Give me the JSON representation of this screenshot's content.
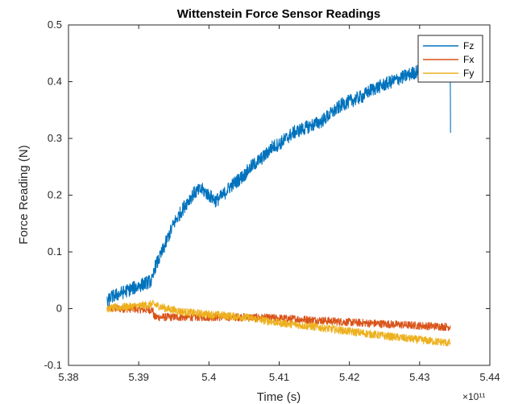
{
  "chart_data": {
    "type": "line",
    "title": "Wittenstein Force Sensor Readings",
    "xlabel": "Time (s)",
    "ylabel": "Force Reading (N)",
    "x_multiplier": "×10¹¹",
    "xlim": [
      5.38,
      5.44
    ],
    "ylim": [
      -0.1,
      0.5
    ],
    "x_ticks": [
      5.38,
      5.39,
      5.4,
      5.41,
      5.42,
      5.43,
      5.44
    ],
    "x_tick_labels": [
      "5.38",
      "5.39",
      "5.4",
      "5.41",
      "5.42",
      "5.43",
      "5.44"
    ],
    "y_ticks": [
      -0.1,
      0,
      0.1,
      0.2,
      0.3,
      0.4,
      0.5
    ],
    "y_tick_labels": [
      "-0.1",
      "0",
      "0.1",
      "0.2",
      "0.3",
      "0.4",
      "0.5"
    ],
    "grid": false,
    "legend_position": "top-right",
    "series": [
      {
        "name": "Fz",
        "color": "#0072BD",
        "noise": 0.012,
        "x": [
          5.3855,
          5.386,
          5.387,
          5.388,
          5.389,
          5.39,
          5.391,
          5.392,
          5.3922,
          5.393,
          5.394,
          5.395,
          5.396,
          5.397,
          5.398,
          5.399,
          5.4,
          5.401,
          5.402,
          5.403,
          5.404,
          5.405,
          5.406,
          5.407,
          5.408,
          5.409,
          5.41,
          5.411,
          5.412,
          5.413,
          5.414,
          5.415,
          5.416,
          5.417,
          5.418,
          5.419,
          5.42,
          5.421,
          5.422,
          5.423,
          5.424,
          5.425,
          5.426,
          5.427,
          5.428,
          5.429,
          5.43,
          5.431,
          5.432,
          5.433,
          5.434,
          5.4344
        ],
        "y": [
          0.01,
          0.02,
          0.025,
          0.03,
          0.035,
          0.04,
          0.045,
          0.05,
          0.07,
          0.09,
          0.12,
          0.15,
          0.17,
          0.19,
          0.205,
          0.21,
          0.2,
          0.19,
          0.2,
          0.215,
          0.225,
          0.235,
          0.25,
          0.26,
          0.27,
          0.285,
          0.29,
          0.3,
          0.31,
          0.315,
          0.32,
          0.325,
          0.33,
          0.34,
          0.35,
          0.36,
          0.365,
          0.37,
          0.375,
          0.385,
          0.39,
          0.395,
          0.4,
          0.405,
          0.41,
          0.415,
          0.42,
          0.42,
          0.425,
          0.43,
          0.435,
          0.31
        ]
      },
      {
        "name": "Fx",
        "color": "#D95319",
        "noise": 0.007,
        "x": [
          5.3855,
          5.387,
          5.389,
          5.391,
          5.392,
          5.3922,
          5.395,
          5.398,
          5.4,
          5.405,
          5.41,
          5.415,
          5.42,
          5.425,
          5.43,
          5.434,
          5.4344
        ],
        "y": [
          0.0,
          0.0,
          0.0,
          -0.002,
          -0.002,
          -0.015,
          -0.015,
          -0.015,
          -0.015,
          -0.015,
          -0.017,
          -0.02,
          -0.024,
          -0.027,
          -0.03,
          -0.032,
          -0.03
        ]
      },
      {
        "name": "Fy",
        "color": "#EDB120",
        "noise": 0.007,
        "x": [
          5.3855,
          5.387,
          5.389,
          5.391,
          5.392,
          5.394,
          5.396,
          5.398,
          5.4,
          5.405,
          5.41,
          5.415,
          5.42,
          5.425,
          5.43,
          5.434,
          5.4344
        ],
        "y": [
          0.0,
          0.002,
          0.004,
          0.006,
          0.008,
          0.0,
          -0.005,
          -0.008,
          -0.01,
          -0.015,
          -0.025,
          -0.032,
          -0.04,
          -0.048,
          -0.055,
          -0.06,
          -0.06
        ]
      }
    ]
  }
}
